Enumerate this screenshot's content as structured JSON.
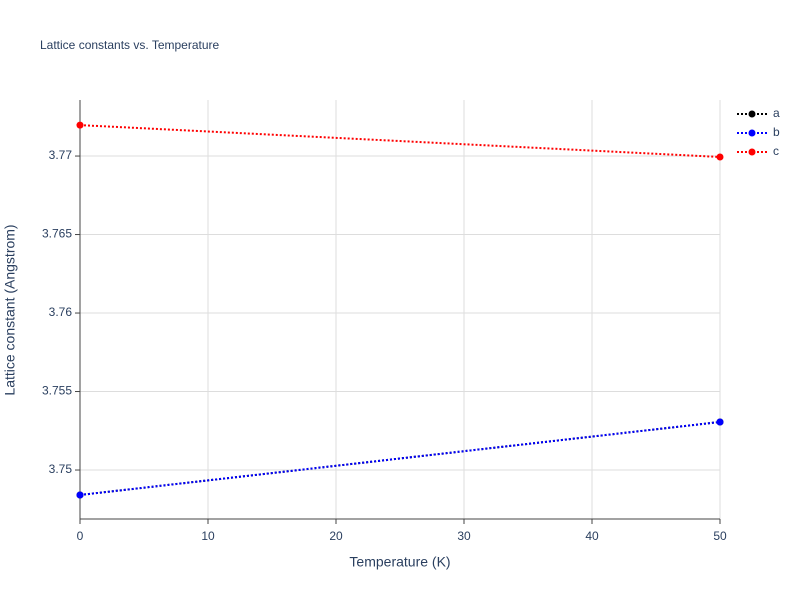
{
  "chart_data": {
    "type": "line",
    "title": "Lattice constants vs. Temperature",
    "x_label": "Temperature (K)",
    "y_label": "Lattice constant (Angstrom)",
    "x": [
      0,
      50
    ],
    "series": [
      {
        "name": "a",
        "color": "#000000",
        "values": [
          3.74841,
          3.75306
        ]
      },
      {
        "name": "b",
        "color": "#0000ff",
        "values": [
          3.74841,
          3.75306
        ]
      },
      {
        "name": "c",
        "color": "#ff0000",
        "values": [
          3.77197,
          3.76994
        ]
      }
    ],
    "xlim": [
      0,
      50
    ],
    "xticks": [
      0,
      10,
      20,
      30,
      40,
      50
    ],
    "ylim": [
      3.74688,
      3.77357
    ],
    "yticks": [
      3.75,
      3.755,
      3.76,
      3.765,
      3.77
    ],
    "grid": true,
    "legend": "top-right"
  }
}
